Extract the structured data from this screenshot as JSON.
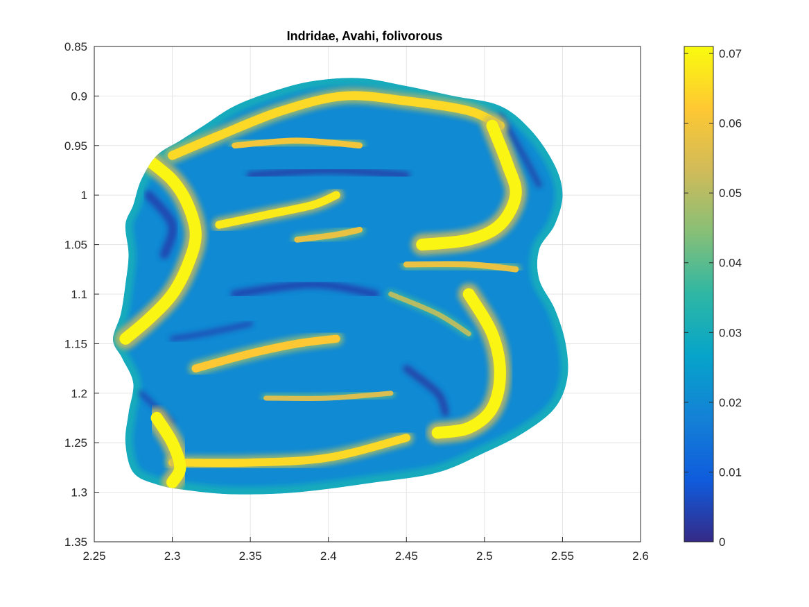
{
  "chart_data": {
    "type": "heatmap",
    "title": "Indridae, Avahi, folivorous",
    "xlabel": "",
    "ylabel": "",
    "xlim": [
      2.25,
      2.6
    ],
    "ylim": [
      0.85,
      1.35
    ],
    "y_axis_direction": "reversed",
    "grid": true,
    "x_ticks": [
      {
        "value": 2.25,
        "label": "2.25"
      },
      {
        "value": 2.3,
        "label": "2.3"
      },
      {
        "value": 2.35,
        "label": "2.35"
      },
      {
        "value": 2.4,
        "label": "2.4"
      },
      {
        "value": 2.45,
        "label": "2.45"
      },
      {
        "value": 2.5,
        "label": "2.5"
      },
      {
        "value": 2.55,
        "label": "2.55"
      },
      {
        "value": 2.6,
        "label": "2.6"
      }
    ],
    "y_ticks": [
      {
        "value": 0.85,
        "label": "0.85"
      },
      {
        "value": 0.9,
        "label": "0.9"
      },
      {
        "value": 0.95,
        "label": "0.95"
      },
      {
        "value": 1.0,
        "label": "1"
      },
      {
        "value": 1.05,
        "label": "1.05"
      },
      {
        "value": 1.1,
        "label": "1.1"
      },
      {
        "value": 1.15,
        "label": "1.15"
      },
      {
        "value": 1.2,
        "label": "1.2"
      },
      {
        "value": 1.25,
        "label": "1.25"
      },
      {
        "value": 1.3,
        "label": "1.3"
      },
      {
        "value": 1.35,
        "label": "1.35"
      }
    ],
    "colorbar": {
      "colormap": "parula",
      "range": [
        0,
        0.071
      ],
      "ticks": [
        {
          "value": 0,
          "label": "0"
        },
        {
          "value": 0.01,
          "label": "0.01"
        },
        {
          "value": 0.02,
          "label": "0.02"
        },
        {
          "value": 0.03,
          "label": "0.03"
        },
        {
          "value": 0.04,
          "label": "0.04"
        },
        {
          "value": 0.05,
          "label": "0.05"
        },
        {
          "value": 0.06,
          "label": "0.06"
        },
        {
          "value": 0.07,
          "label": "0.07"
        }
      ],
      "placement": "right"
    },
    "outline": [
      [
        2.262,
        1.146
      ],
      [
        2.267,
        1.12
      ],
      [
        2.27,
        1.09
      ],
      [
        2.272,
        1.06
      ],
      [
        2.27,
        1.03
      ],
      [
        2.275,
        1.01
      ],
      [
        2.28,
        0.985
      ],
      [
        2.29,
        0.96
      ],
      [
        2.305,
        0.945
      ],
      [
        2.32,
        0.93
      ],
      [
        2.34,
        0.91
      ],
      [
        2.365,
        0.895
      ],
      [
        2.39,
        0.885
      ],
      [
        2.42,
        0.882
      ],
      [
        2.45,
        0.89
      ],
      [
        2.48,
        0.9
      ],
      [
        2.51,
        0.91
      ],
      [
        2.53,
        0.935
      ],
      [
        2.545,
        0.97
      ],
      [
        2.55,
        1.0
      ],
      [
        2.545,
        1.03
      ],
      [
        2.535,
        1.055
      ],
      [
        2.535,
        1.085
      ],
      [
        2.545,
        1.115
      ],
      [
        2.552,
        1.15
      ],
      [
        2.553,
        1.185
      ],
      [
        2.545,
        1.215
      ],
      [
        2.525,
        1.24
      ],
      [
        2.5,
        1.26
      ],
      [
        2.47,
        1.28
      ],
      [
        2.43,
        1.29
      ],
      [
        2.38,
        1.3
      ],
      [
        2.34,
        1.302
      ],
      [
        2.31,
        1.298
      ],
      [
        2.29,
        1.292
      ],
      [
        2.275,
        1.28
      ],
      [
        2.27,
        1.25
      ],
      [
        2.272,
        1.22
      ],
      [
        2.275,
        1.19
      ],
      [
        2.268,
        1.165
      ]
    ],
    "high_bands": [
      {
        "value": 0.07,
        "points": [
          [
            2.285,
            0.965
          ],
          [
            2.3,
            0.985
          ],
          [
            2.31,
            1.01
          ],
          [
            2.315,
            1.04
          ],
          [
            2.31,
            1.07
          ],
          [
            2.3,
            1.1
          ],
          [
            2.285,
            1.125
          ],
          [
            2.27,
            1.145
          ]
        ],
        "width": 0.012
      },
      {
        "value": 0.065,
        "points": [
          [
            2.3,
            0.96
          ],
          [
            2.33,
            0.94
          ],
          [
            2.37,
            0.915
          ],
          [
            2.41,
            0.9
          ],
          [
            2.45,
            0.905
          ],
          [
            2.49,
            0.915
          ],
          [
            2.51,
            0.93
          ]
        ],
        "width": 0.009
      },
      {
        "value": 0.07,
        "points": [
          [
            2.505,
            0.93
          ],
          [
            2.515,
            0.97
          ],
          [
            2.52,
            1.0
          ],
          [
            2.51,
            1.03
          ],
          [
            2.49,
            1.045
          ],
          [
            2.46,
            1.05
          ]
        ],
        "width": 0.012
      },
      {
        "value": 0.068,
        "points": [
          [
            2.33,
            1.03
          ],
          [
            2.36,
            1.02
          ],
          [
            2.39,
            1.01
          ],
          [
            2.405,
            1.0
          ]
        ],
        "width": 0.008
      },
      {
        "value": 0.062,
        "points": [
          [
            2.315,
            1.175
          ],
          [
            2.35,
            1.16
          ],
          [
            2.38,
            1.15
          ],
          [
            2.405,
            1.145
          ]
        ],
        "width": 0.008
      },
      {
        "value": 0.07,
        "points": [
          [
            2.49,
            1.1
          ],
          [
            2.505,
            1.14
          ],
          [
            2.51,
            1.18
          ],
          [
            2.505,
            1.215
          ],
          [
            2.49,
            1.235
          ],
          [
            2.47,
            1.24
          ]
        ],
        "width": 0.012
      },
      {
        "value": 0.065,
        "points": [
          [
            2.3,
            1.27
          ],
          [
            2.35,
            1.27
          ],
          [
            2.4,
            1.265
          ],
          [
            2.45,
            1.245
          ]
        ],
        "width": 0.008
      },
      {
        "value": 0.07,
        "points": [
          [
            2.29,
            1.225
          ],
          [
            2.3,
            1.25
          ],
          [
            2.305,
            1.275
          ],
          [
            2.3,
            1.29
          ]
        ],
        "width": 0.012
      },
      {
        "value": 0.06,
        "points": [
          [
            2.34,
            0.95
          ],
          [
            2.38,
            0.945
          ],
          [
            2.42,
            0.95
          ]
        ],
        "width": 0.006
      },
      {
        "value": 0.058,
        "points": [
          [
            2.45,
            1.07
          ],
          [
            2.49,
            1.07
          ],
          [
            2.52,
            1.075
          ]
        ],
        "width": 0.006
      },
      {
        "value": 0.055,
        "points": [
          [
            2.36,
            1.205
          ],
          [
            2.4,
            1.205
          ],
          [
            2.44,
            1.2
          ]
        ],
        "width": 0.005
      },
      {
        "value": 0.05,
        "points": [
          [
            2.44,
            1.1
          ],
          [
            2.47,
            1.12
          ],
          [
            2.49,
            1.14
          ]
        ],
        "width": 0.005
      },
      {
        "value": 0.058,
        "points": [
          [
            2.38,
            1.045
          ],
          [
            2.405,
            1.04
          ],
          [
            2.42,
            1.035
          ]
        ],
        "width": 0.006
      }
    ],
    "low_patches": [
      {
        "value": 0.004,
        "points": [
          [
            2.285,
            1.0
          ],
          [
            2.3,
            1.03
          ],
          [
            2.295,
            1.06
          ]
        ],
        "width": 0.009
      },
      {
        "value": 0.003,
        "points": [
          [
            2.35,
            0.98
          ],
          [
            2.4,
            0.975
          ],
          [
            2.45,
            0.98
          ]
        ],
        "width": 0.007
      },
      {
        "value": 0.004,
        "points": [
          [
            2.34,
            1.1
          ],
          [
            2.39,
            1.09
          ],
          [
            2.43,
            1.1
          ]
        ],
        "width": 0.008
      },
      {
        "value": 0.003,
        "points": [
          [
            2.45,
            1.175
          ],
          [
            2.47,
            1.2
          ],
          [
            2.475,
            1.22
          ]
        ],
        "width": 0.007
      },
      {
        "value": 0.004,
        "points": [
          [
            2.3,
            1.145
          ],
          [
            2.32,
            1.14
          ],
          [
            2.35,
            1.13
          ]
        ],
        "width": 0.005
      },
      {
        "value": 0.003,
        "points": [
          [
            2.51,
            0.92
          ],
          [
            2.525,
            0.96
          ],
          [
            2.535,
            0.99
          ]
        ],
        "width": 0.005
      },
      {
        "value": 0.004,
        "points": [
          [
            2.28,
            1.2
          ],
          [
            2.29,
            1.215
          ],
          [
            2.3,
            1.23
          ]
        ],
        "width": 0.005
      }
    ]
  }
}
